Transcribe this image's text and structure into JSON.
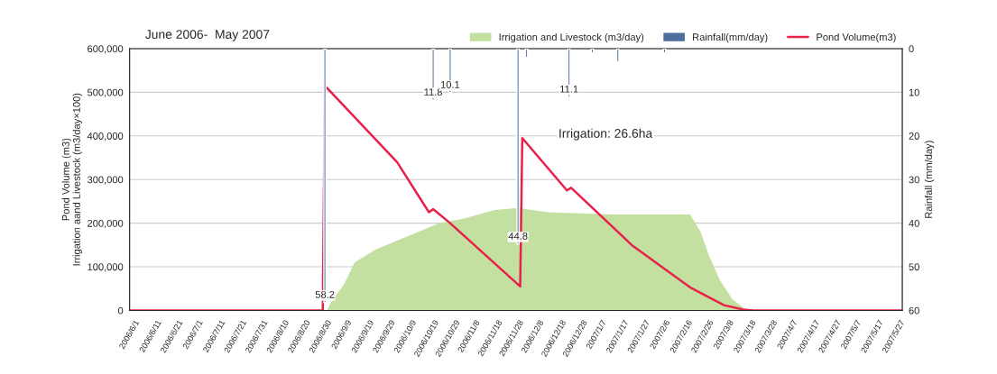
{
  "chart_data": {
    "type": "line",
    "title": "June 2006-  May 2007",
    "ylabel": "Pond Volume (m3)\nIrrigation aand Livestock (m3/day×100)",
    "y2label": "Rainfall (mm/day)",
    "annotations": [
      "Irrigation: 26.6ha"
    ],
    "series": [
      {
        "name": "Irrigation and Livestock (m3/day)",
        "type": "area",
        "color": "#c4e0a0",
        "x": [
          "2006-09-02",
          "2006-09-04",
          "2006-09-10",
          "2006-09-15",
          "2006-09-25",
          "2006-10-05",
          "2006-10-15",
          "2006-10-25",
          "2006-11-05",
          "2006-11-20",
          "2006-12-01",
          "2006-12-15",
          "2007-01-15",
          "2007-02-20",
          "2007-02-25",
          "2007-03-01",
          "2007-03-06",
          "2007-03-12",
          "2007-03-19"
        ],
        "values": [
          0,
          20000,
          60000,
          110000,
          140000,
          160000,
          180000,
          200000,
          210000,
          230000,
          235000,
          225000,
          220000,
          220000,
          180000,
          125000,
          70000,
          25000,
          0
        ]
      },
      {
        "name": "Rainfall(mm/day)",
        "type": "bar",
        "axis": "y2",
        "color": "#4f6e9e",
        "x": [
          "2006-09-01",
          "2006-10-22",
          "2006-10-30",
          "2006-12-01",
          "2006-12-05",
          "2006-12-25",
          "2007-01-05",
          "2007-01-17",
          "2007-02-08"
        ],
        "values": [
          58.2,
          11.8,
          10.1,
          44.8,
          2,
          11.1,
          1,
          3,
          1
        ],
        "value_labels": [
          "58.2",
          "11.8",
          "10.1",
          "44.8",
          null,
          "11.1",
          null,
          null,
          null
        ]
      },
      {
        "name": "Pond Volume(m3)",
        "color": "#e8204a",
        "x": [
          "2006-06-01",
          "2006-08-31",
          "2006-09-01",
          "2006-10-05",
          "2006-10-20",
          "2006-10-22",
          "2006-10-23",
          "2006-10-30",
          "2006-12-02",
          "2006-12-03",
          "2006-12-24",
          "2006-12-26",
          "2007-01-24",
          "2007-02-20",
          "2007-03-08",
          "2007-03-17",
          "2007-03-22",
          "2007-05-31"
        ],
        "values": [
          0,
          0,
          515000,
          340000,
          225000,
          232000,
          228000,
          200000,
          55000,
          395000,
          275000,
          281000,
          148000,
          53000,
          12000,
          2000,
          0,
          0
        ]
      }
    ],
    "xlim": [
      "2006-06-01",
      "2007-05-31"
    ],
    "xticks": [
      {
        "value": "2006-06-01",
        "label": "2006/6/1"
      },
      {
        "value": "2006-06-11",
        "label": "2006/6/11"
      },
      {
        "value": "2006-06-21",
        "label": "2006/6/21"
      },
      {
        "value": "2006-07-01",
        "label": "2006/7/1"
      },
      {
        "value": "2006-07-11",
        "label": "2006/7/11"
      },
      {
        "value": "2006-07-21",
        "label": "2006/7/21"
      },
      {
        "value": "2006-07-31",
        "label": "2006/7/31"
      },
      {
        "value": "2006-08-10",
        "label": "2006/8/10"
      },
      {
        "value": "2006-08-20",
        "label": "2006/8/20"
      },
      {
        "value": "2006-08-30",
        "label": "2006/8/30"
      },
      {
        "value": "2006-09-09",
        "label": "2006/9/9"
      },
      {
        "value": "2006-09-19",
        "label": "2006/9/19"
      },
      {
        "value": "2006-09-29",
        "label": "2006/9/29"
      },
      {
        "value": "2006-10-09",
        "label": "2006/10/9"
      },
      {
        "value": "2006-10-19",
        "label": "2006/10/19"
      },
      {
        "value": "2006-10-29",
        "label": "2006/10/29"
      },
      {
        "value": "2006-11-08",
        "label": "2006/11/8"
      },
      {
        "value": "2006-11-18",
        "label": "2006/11/18"
      },
      {
        "value": "2006-11-28",
        "label": "2006/11/28"
      },
      {
        "value": "2006-12-08",
        "label": "2006/12/8"
      },
      {
        "value": "2006-12-18",
        "label": "2006/12/18"
      },
      {
        "value": "2006-12-28",
        "label": "2006/12/28"
      },
      {
        "value": "2007-01-07",
        "label": "2007/1/7"
      },
      {
        "value": "2007-01-17",
        "label": "2007/1/17"
      },
      {
        "value": "2007-01-27",
        "label": "2007/1/27"
      },
      {
        "value": "2007-02-06",
        "label": "2007/2/6"
      },
      {
        "value": "2007-02-16",
        "label": "2007/2/16"
      },
      {
        "value": "2007-02-26",
        "label": "2007/2/26"
      },
      {
        "value": "2007-03-08",
        "label": "2007/3/8"
      },
      {
        "value": "2007-03-18",
        "label": "2007/3/18"
      },
      {
        "value": "2007-03-28",
        "label": "2007/3/28"
      },
      {
        "value": "2007-04-07",
        "label": "2007/4/7"
      },
      {
        "value": "2007-04-17",
        "label": "2007/4/17"
      },
      {
        "value": "2007-04-27",
        "label": "2007/4/27"
      },
      {
        "value": "2007-05-07",
        "label": "2007/5/7"
      },
      {
        "value": "2007-05-17",
        "label": "2007/5/17"
      },
      {
        "value": "2007-05-27",
        "label": "2007/5/27"
      }
    ],
    "ylim": [
      0,
      600000
    ],
    "yticks": [
      {
        "value": 0,
        "label": "0"
      },
      {
        "value": 100000,
        "label": "100,000"
      },
      {
        "value": 200000,
        "label": "200,000"
      },
      {
        "value": 300000,
        "label": "300,000"
      },
      {
        "value": 400000,
        "label": "400,000"
      },
      {
        "value": 500000,
        "label": "500,000"
      },
      {
        "value": 600000,
        "label": "600,000"
      }
    ],
    "y2lim": [
      60,
      0
    ],
    "y2ticks": [
      0,
      10,
      20,
      30,
      40,
      50,
      60
    ],
    "grid": "y",
    "legend": "top"
  }
}
